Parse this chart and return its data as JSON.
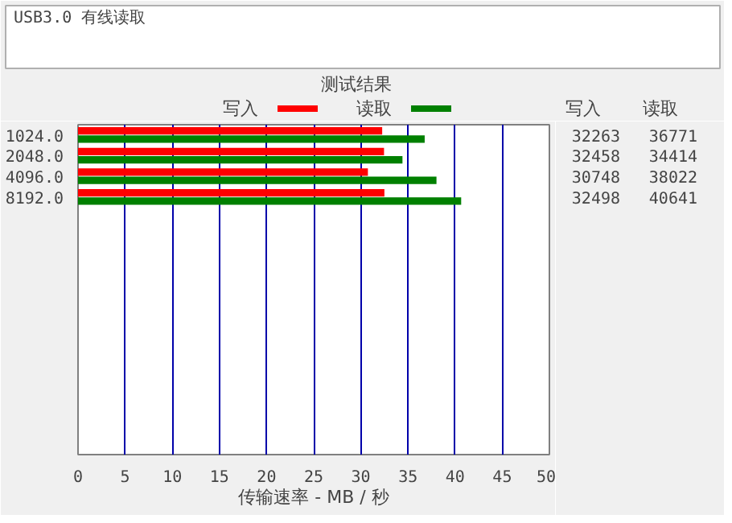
{
  "chart_data": {
    "type": "bar",
    "orientation": "horizontal",
    "title": "测试结果",
    "xlabel": "传输速率 - MB / 秒",
    "annotations": [
      "USB3.0 有线读取",
      "32263",
      "36771",
      "32458",
      "34414",
      "30748",
      "38022",
      "32498",
      "40641"
    ],
    "categories": [
      "1024.0",
      "2048.0",
      "4096.0",
      "8192.0",
      null,
      null,
      null,
      null,
      null,
      null,
      null,
      null,
      null,
      null,
      null,
      null
    ],
    "series": [
      {
        "name": "写入",
        "color": "#ff0000",
        "values": [
          32.263,
          32.458,
          30.748,
          32.498,
          null,
          null,
          null,
          null,
          null,
          null,
          null,
          null,
          null,
          null,
          null,
          null
        ]
      },
      {
        "name": "读取",
        "color": "#008000",
        "values": [
          36.771,
          34.414,
          38.022,
          40.641,
          null,
          null,
          null,
          null,
          null,
          null,
          null,
          null,
          null,
          null,
          null,
          null
        ]
      }
    ],
    "xlim": [
      0,
      50
    ],
    "xticks": [
      0,
      5,
      10,
      15,
      20,
      25,
      30,
      35,
      40,
      45,
      50
    ],
    "grid": "x",
    "legend": "top"
  }
}
